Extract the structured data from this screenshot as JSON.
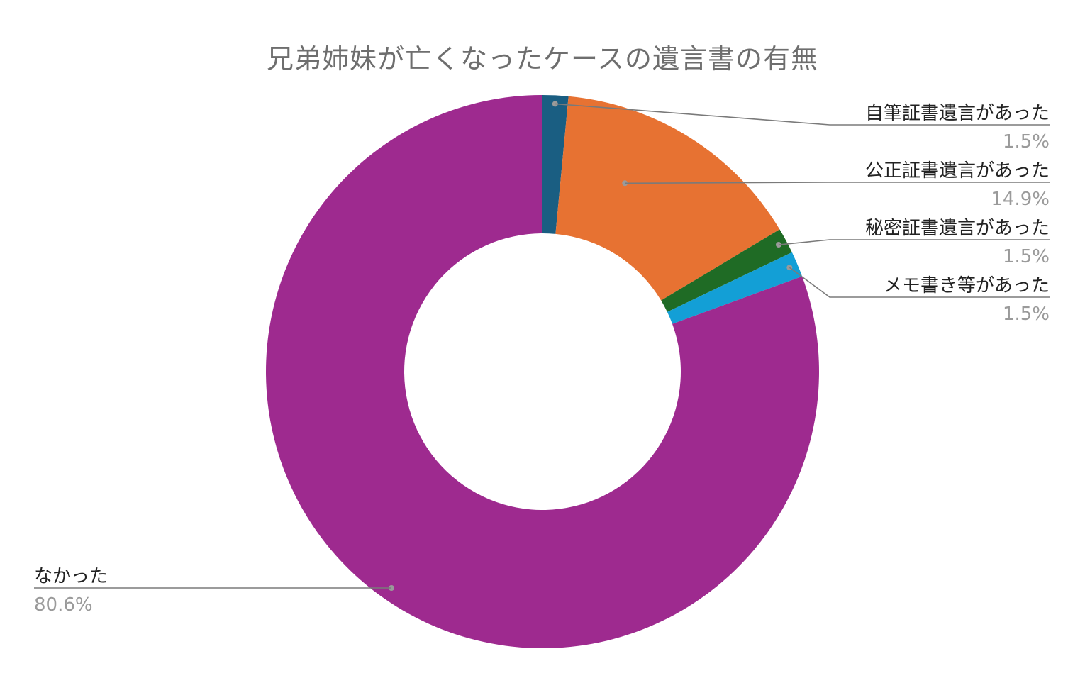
{
  "chart_data": {
    "type": "pie",
    "title": "兄弟姉妹が亡くなったケースの遺言書の有無",
    "donut": true,
    "categories": [
      "自筆証書遺言があった",
      "公正証書遺言があった",
      "秘密証書遺言があった",
      "メモ書き等があった",
      "なかった"
    ],
    "values": [
      1.5,
      14.9,
      1.5,
      1.5,
      80.6
    ],
    "value_labels": [
      "1.5%",
      "14.9%",
      "1.5%",
      "1.5%",
      "80.6%"
    ],
    "colors": [
      "#1a5e82",
      "#e77232",
      "#1f6b25",
      "#139fd6",
      "#9e2a8f"
    ],
    "label_placement": "outside-with-leader-lines",
    "legend": "none"
  }
}
